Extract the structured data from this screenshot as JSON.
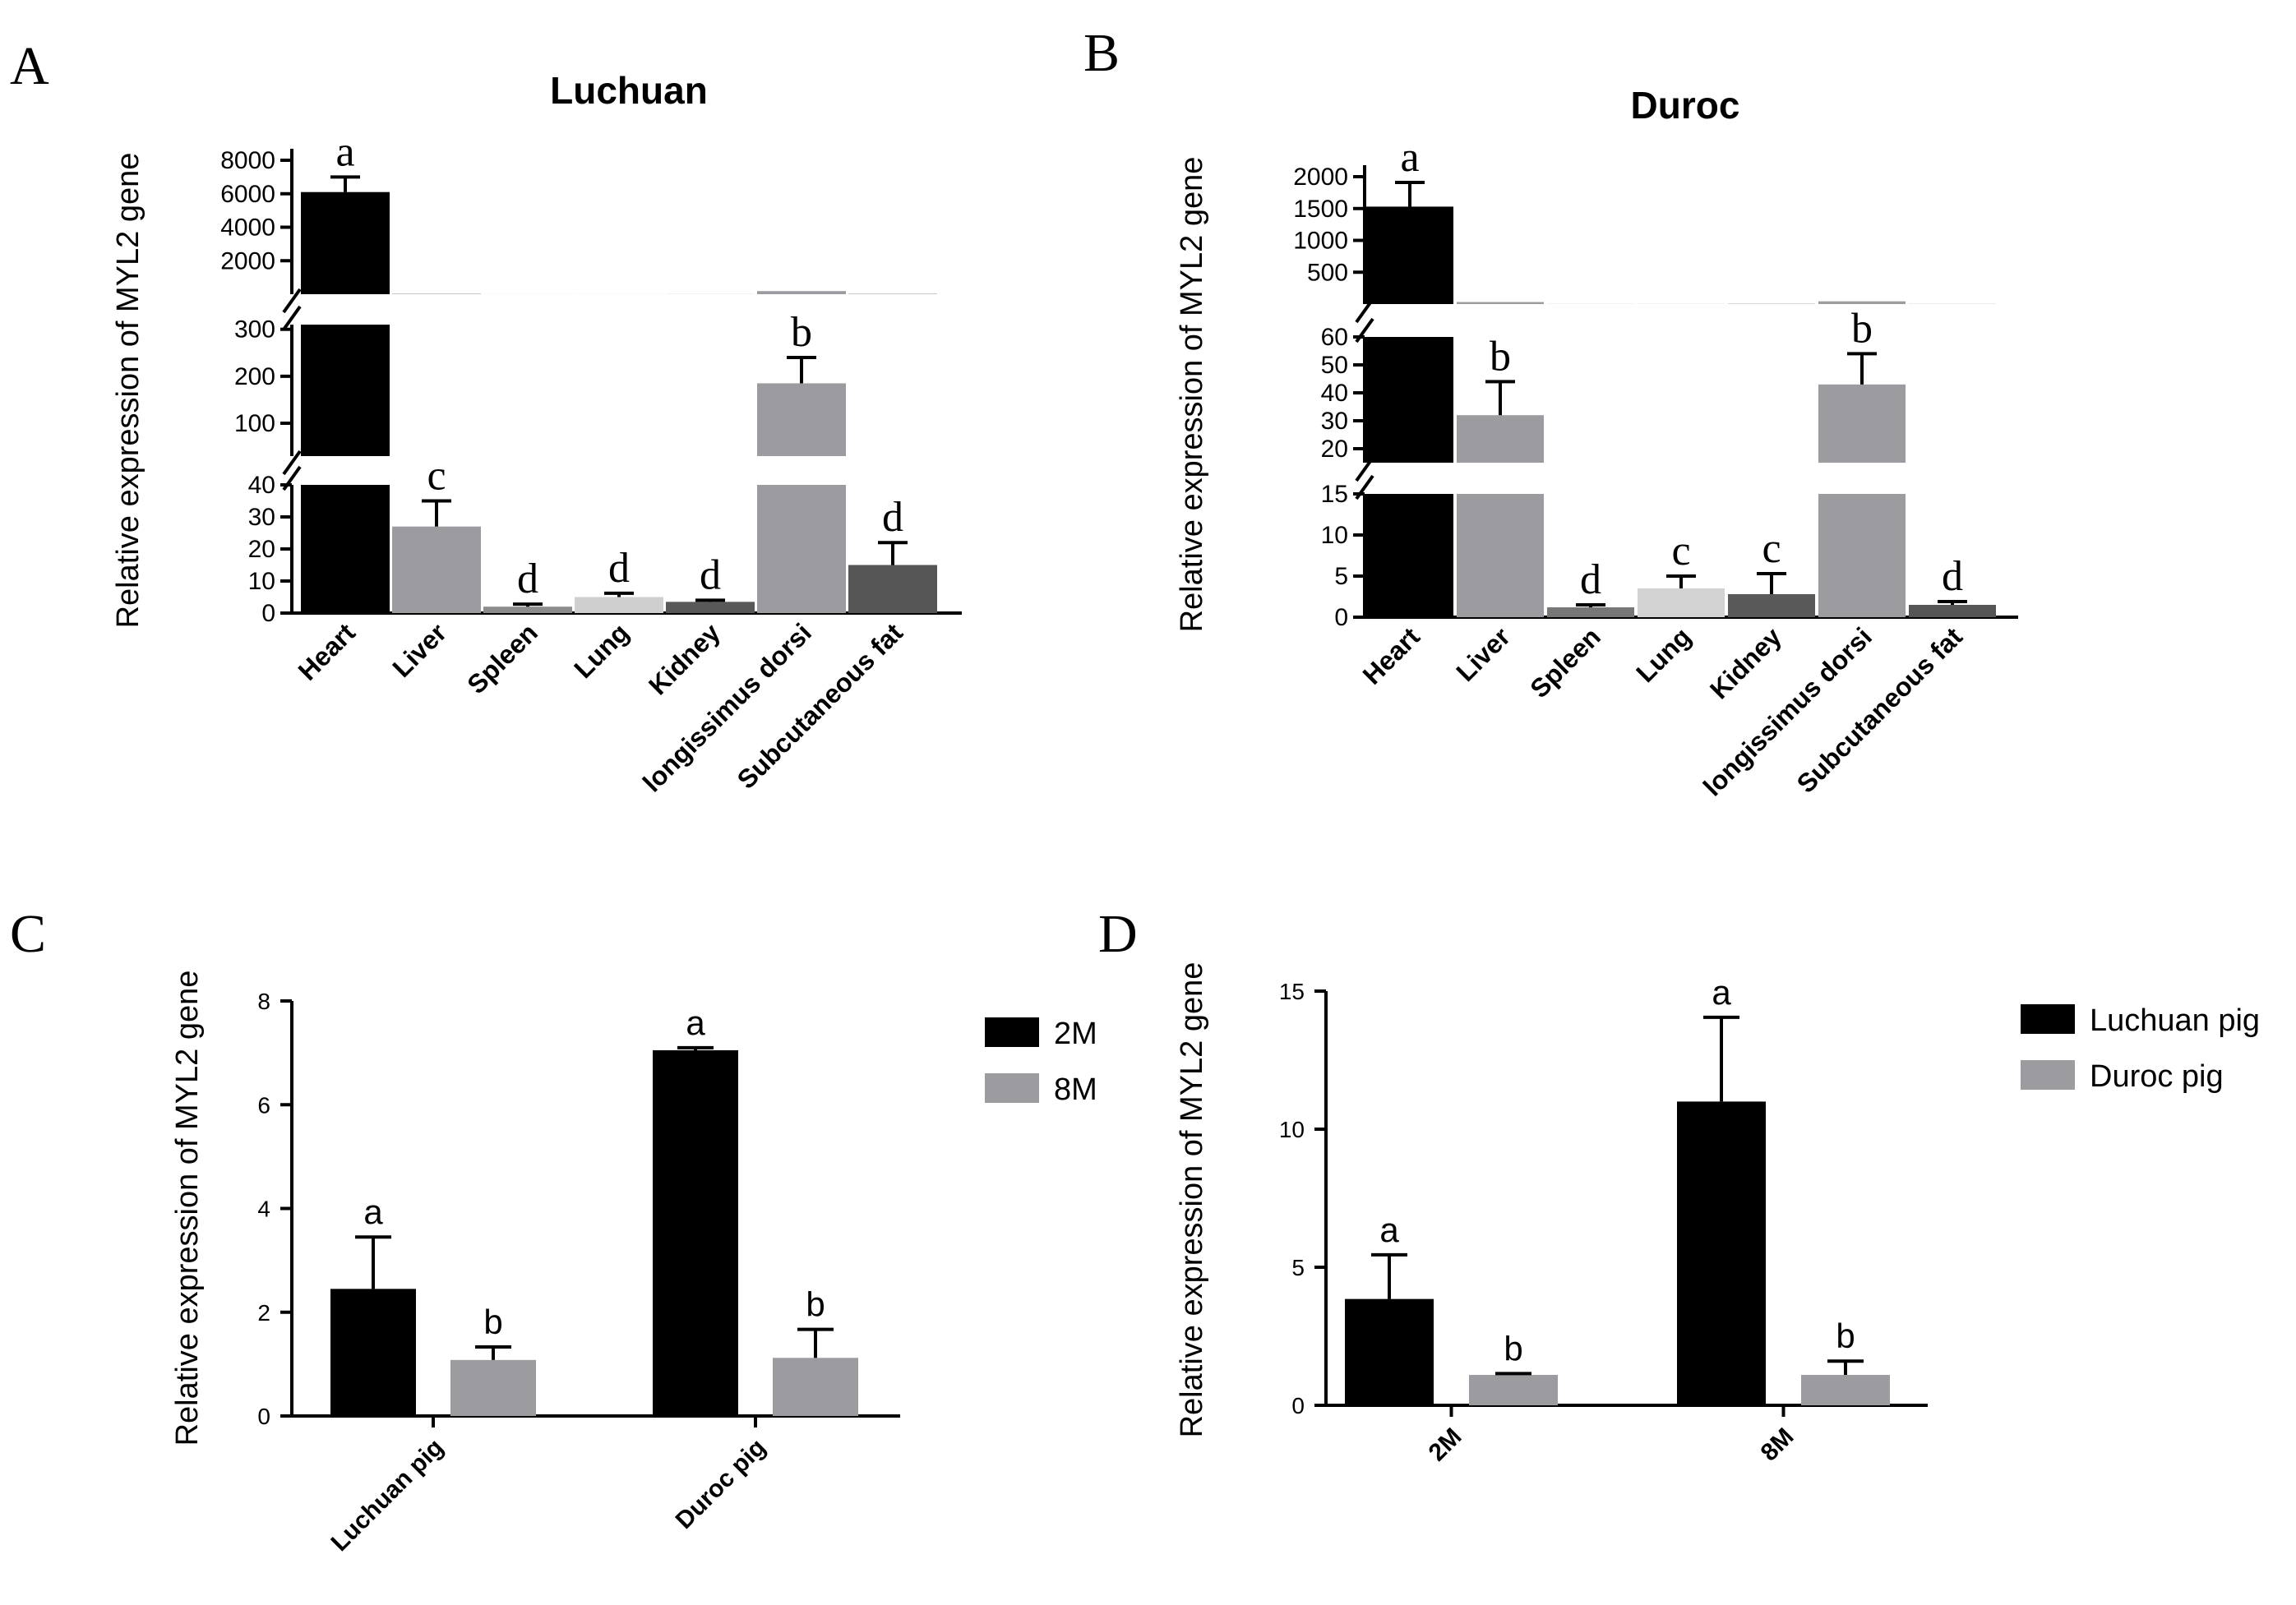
{
  "chart_data": [
    {
      "panel": "A",
      "type": "bar",
      "title": "Luchuan",
      "ylabel": "Relative expression of MYL2 gene",
      "xlabel": "",
      "categories": [
        "Heart",
        "Liver",
        "Spleen",
        "Lung",
        "Kidney",
        "longissimus dorsi",
        "Subcutaneous fat"
      ],
      "values": [
        6100,
        27,
        2,
        5,
        3.5,
        185,
        15
      ],
      "errors": [
        900,
        8,
        0.8,
        1.2,
        0.5,
        55,
        7
      ],
      "letters": [
        "a",
        "c",
        "d",
        "d",
        "d",
        "b",
        "d"
      ],
      "colors": [
        "#000000",
        "#9c9ba0",
        "#8c8c8c",
        "#cfcfcf",
        "#585858",
        "#9c9ba0",
        "#555555"
      ],
      "broken_axis": [
        {
          "range": [
            0,
            40
          ],
          "ticks": [
            "0",
            "10",
            "20",
            "30",
            "40"
          ]
        },
        {
          "range": [
            30,
            310
          ],
          "ticks": [
            "100",
            "200",
            "300"
          ]
        },
        {
          "range": [
            0,
            8000
          ],
          "ticks": [
            "2000",
            "4000",
            "6000",
            "8000"
          ]
        }
      ]
    },
    {
      "panel": "B",
      "type": "bar",
      "title": "Duroc",
      "ylabel": "Relative expression of MYL2 gene",
      "xlabel": "",
      "categories": [
        "Heart",
        "Liver",
        "Spleen",
        "Lung",
        "Kidney",
        "longissimus dorsi",
        "Subcutaneous fat"
      ],
      "values": [
        1530,
        32,
        1.2,
        3.5,
        2.8,
        43,
        1.5
      ],
      "errors": [
        380,
        12,
        0.3,
        1.5,
        2.5,
        11,
        0.4
      ],
      "letters": [
        "a",
        "b",
        "d",
        "c",
        "c",
        "b",
        "d"
      ],
      "colors": [
        "#000000",
        "#9c9ba0",
        "#777777",
        "#d2d2d2",
        "#595959",
        "#9c9ba0",
        "#555555"
      ],
      "broken_axis": [
        {
          "range": [
            0,
            15
          ],
          "ticks": [
            "0",
            "5",
            "10",
            "15"
          ]
        },
        {
          "range": [
            15,
            60
          ],
          "ticks": [
            "20",
            "30",
            "40",
            "50",
            "60"
          ]
        },
        {
          "range": [
            0,
            2000
          ],
          "ticks": [
            "500",
            "1000",
            "1500",
            "2000"
          ]
        }
      ]
    },
    {
      "panel": "C",
      "type": "bar",
      "title": "",
      "ylabel": "Relative expression of MYL2 gene",
      "xlabel": "",
      "categories": [
        "Luchuan pig",
        "Duroc pig"
      ],
      "ylim": [
        0,
        8
      ],
      "yticks": [
        "0",
        "2",
        "4",
        "6",
        "8"
      ],
      "series": [
        {
          "name": "2M",
          "color": "#000000",
          "values": [
            2.45,
            7.05
          ],
          "errors": [
            1.0,
            0.05
          ],
          "letters": [
            "a",
            "a"
          ]
        },
        {
          "name": "8M",
          "color": "#9c9ba0",
          "values": [
            1.08,
            1.12
          ],
          "errors": [
            0.25,
            0.55
          ],
          "letters": [
            "b",
            "b"
          ]
        }
      ],
      "legend": "right"
    },
    {
      "panel": "D",
      "type": "bar",
      "title": "",
      "ylabel": "Relative expression of MYL2 gene",
      "xlabel": "",
      "categories": [
        "2M",
        "8M"
      ],
      "ylim": [
        0,
        15
      ],
      "yticks": [
        "0",
        "5",
        "10",
        "15"
      ],
      "series": [
        {
          "name": "Luchuan pig",
          "color": "#000000",
          "values": [
            3.85,
            11.0
          ],
          "errors": [
            1.6,
            3.05
          ],
          "letters": [
            "a",
            "a"
          ]
        },
        {
          "name": "Duroc pig",
          "color": "#9c9ba0",
          "values": [
            1.1,
            1.1
          ],
          "errors": [
            0.05,
            0.5
          ],
          "letters": [
            "b",
            "b"
          ]
        }
      ],
      "legend": "right"
    }
  ]
}
